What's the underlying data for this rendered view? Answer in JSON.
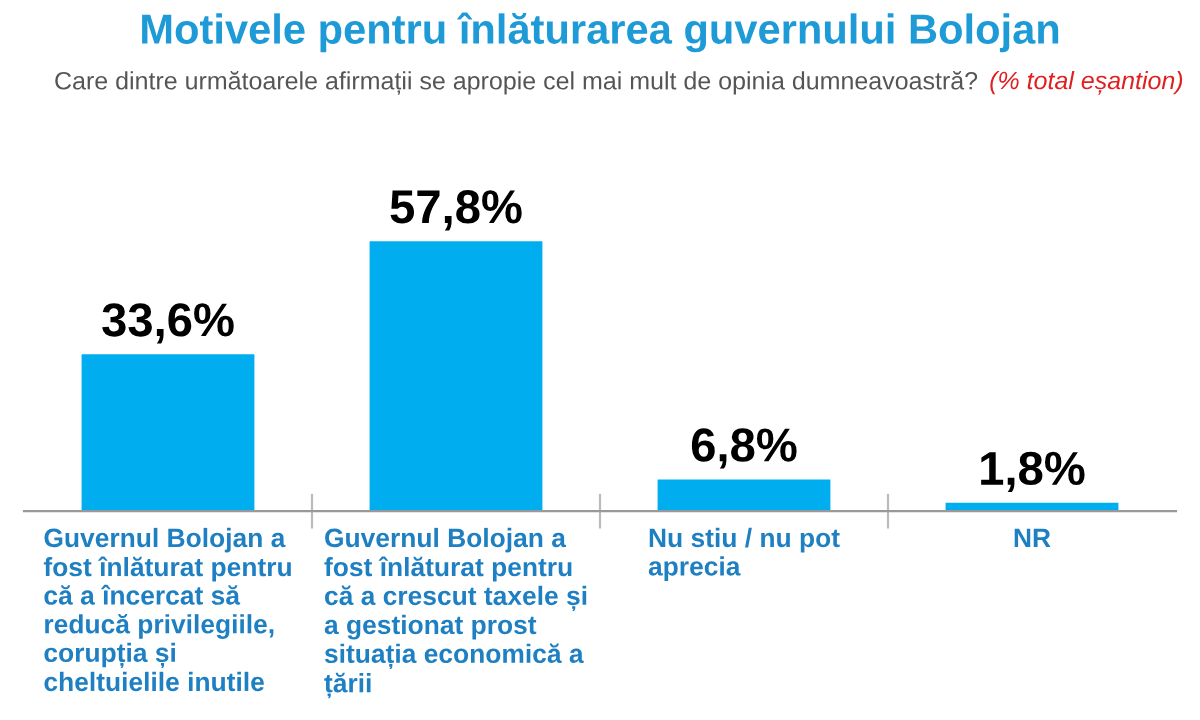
{
  "chart_data": {
    "type": "bar",
    "title": "Motivele pentru înlăturarea guvernului Bolojan",
    "subtitle": "Care dintre următoarele afirmații se apropie cel mai mult de opinia dumneavoastră?",
    "annotations": [
      "(% total eșantion)"
    ],
    "categories": [
      "Guvernul Bolojan a fost înlăturat pentru că a încercat să reducă privilegiile, corupția și cheltuielile inutile",
      "Guvernul Bolojan a fost înlăturat pentru că a crescut taxele și a gestionat prost situația economică a țării",
      "Nu stiu / nu pot aprecia",
      "NR"
    ],
    "values": [
      33.6,
      57.8,
      6.8,
      1.8
    ],
    "value_labels": [
      "33,6%",
      "57,8%",
      "6,8%",
      "1,8%"
    ],
    "color": "#00aeef",
    "grid": false,
    "legend": false
  }
}
